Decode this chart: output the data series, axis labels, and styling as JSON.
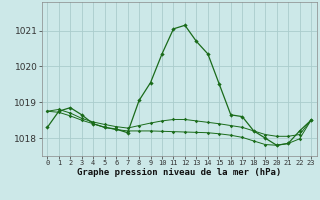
{
  "xlabel": "Graphe pression niveau de la mer (hPa)",
  "bg_color": "#cce8e8",
  "grid_color": "#aacccc",
  "line_color": "#1a6b1a",
  "x": [
    0,
    1,
    2,
    3,
    4,
    5,
    6,
    7,
    8,
    9,
    10,
    11,
    12,
    13,
    14,
    15,
    16,
    17,
    18,
    19,
    20,
    21,
    22,
    23
  ],
  "y_main": [
    1018.3,
    1018.75,
    1018.85,
    1018.65,
    1018.4,
    1018.3,
    1018.25,
    1018.15,
    1019.05,
    1019.55,
    1020.35,
    1021.05,
    1021.15,
    1020.7,
    1020.35,
    1019.5,
    1018.65,
    1018.6,
    1018.2,
    1018.0,
    1017.8,
    1017.85,
    1018.2,
    1018.5
  ],
  "y_line2": [
    1018.75,
    1018.8,
    1018.7,
    1018.55,
    1018.45,
    1018.38,
    1018.32,
    1018.28,
    1018.35,
    1018.42,
    1018.48,
    1018.52,
    1018.52,
    1018.48,
    1018.44,
    1018.4,
    1018.35,
    1018.3,
    1018.2,
    1018.1,
    1018.05,
    1018.05,
    1018.1,
    1018.5
  ],
  "y_line3": [
    1018.75,
    1018.72,
    1018.62,
    1018.5,
    1018.4,
    1018.3,
    1018.24,
    1018.2,
    1018.2,
    1018.2,
    1018.19,
    1018.18,
    1018.17,
    1018.16,
    1018.15,
    1018.12,
    1018.08,
    1018.02,
    1017.92,
    1017.82,
    1017.8,
    1017.85,
    1017.98,
    1018.5
  ],
  "ylim_min": 1017.5,
  "ylim_max": 1021.8,
  "yticks": [
    1018,
    1019,
    1020,
    1021
  ],
  "xtick_labels": [
    "0",
    "1",
    "2",
    "3",
    "4",
    "5",
    "6",
    "7",
    "8",
    "9",
    "10",
    "11",
    "12",
    "13",
    "14",
    "15",
    "16",
    "17",
    "18",
    "19",
    "20",
    "21",
    "22",
    "23"
  ]
}
